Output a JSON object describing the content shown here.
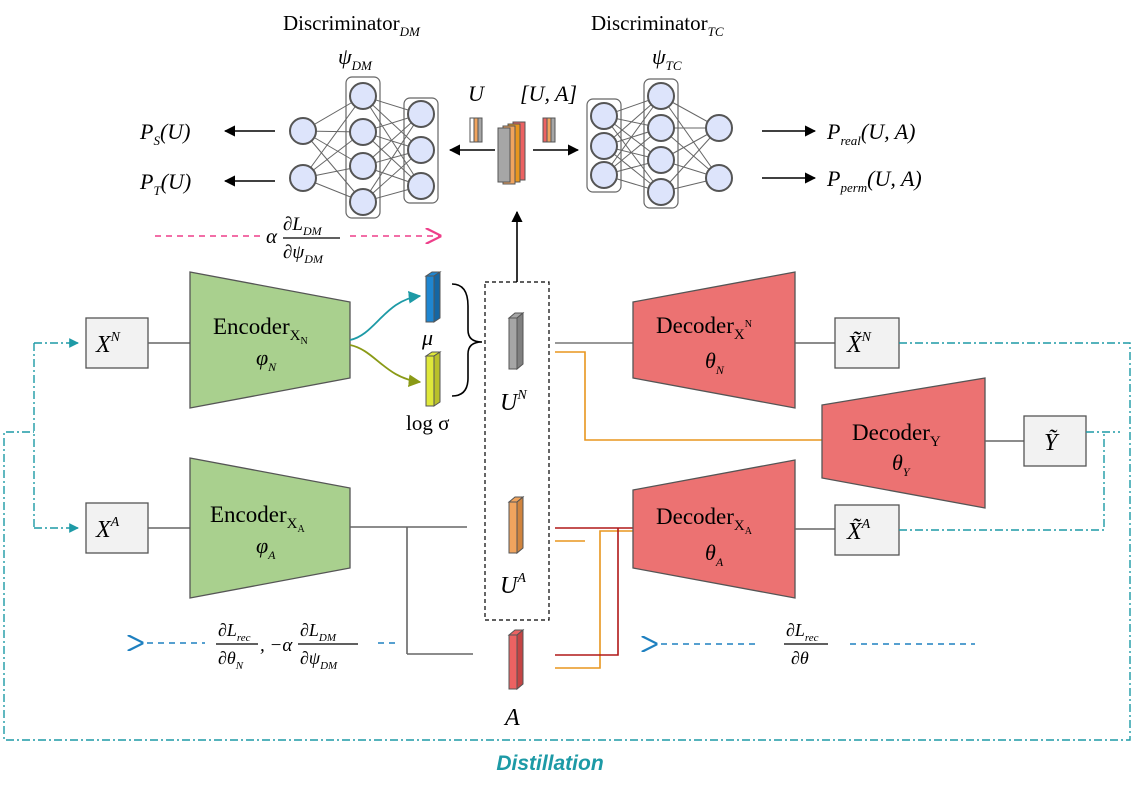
{
  "discriminator_dm": {
    "title": "Discriminator",
    "title_sub": "DM",
    "param": "ψ",
    "param_sub": "DM"
  },
  "discriminator_tc": {
    "title": "Discriminator",
    "title_sub": "TC",
    "param": "ψ",
    "param_sub": "TC"
  },
  "outputs_left": [
    {
      "var": "P",
      "sub": "S",
      "arg": "(U)"
    },
    {
      "var": "P",
      "sub": "T",
      "arg": "(U)"
    }
  ],
  "outputs_right": [
    {
      "var": "P",
      "sub": "real",
      "arg": "(U, A)"
    },
    {
      "var": "P",
      "sub": "perm",
      "arg": "(U, A)"
    }
  ],
  "labels": {
    "u_top": "U",
    "ua_top": "[U, A]",
    "mu": "μ",
    "log_sigma": "log σ",
    "un_base": "U",
    "un_sup": "N",
    "ua_base": "U",
    "ua_sup": "A",
    "a": "A",
    "distillation": "Distillation"
  },
  "gradients": {
    "dm_grad": {
      "coef": "α",
      "num": "∂L",
      "num_sub": "DM",
      "den": "∂ψ",
      "den_sub": "DM"
    },
    "enc_grad": {
      "num1": "∂L",
      "num1_sub": "rec",
      "den1": "∂θ",
      "den1_sub": "N",
      "sep": ", −α",
      "num2": "∂L",
      "num2_sub": "DM",
      "den2": "∂ψ",
      "den2_sub": "DM"
    },
    "dec_grad": {
      "num": "∂L",
      "num_sub": "rec",
      "den": "∂θ"
    }
  },
  "encoders": [
    {
      "id": "encoder-n",
      "title": "Encoder",
      "sub": "X",
      "subsub": "N",
      "param": "φ",
      "param_sub": "N"
    },
    {
      "id": "encoder-a",
      "title": "Encoder",
      "sub": "X",
      "subsub": "A",
      "param": "φ",
      "param_sub": "A"
    }
  ],
  "decoders": [
    {
      "id": "decoder-xn",
      "title": "Decoder",
      "sub": "X",
      "subsub": "N",
      "param": "θ",
      "param_sub": "N"
    },
    {
      "id": "decoder-y",
      "title": "Decoder",
      "sub": "Y",
      "subsub": "",
      "param": "θ",
      "param_sub": "Y"
    },
    {
      "id": "decoder-xa",
      "title": "Decoder",
      "sub": "X",
      "subsub": "A",
      "param": "θ",
      "param_sub": "A"
    }
  ],
  "inputs": [
    {
      "base": "X",
      "sup": "N"
    },
    {
      "base": "X",
      "sup": "A"
    }
  ],
  "reconstructions": [
    {
      "base": "X̃",
      "sup": "N"
    },
    {
      "base": "Ỹ",
      "sup": ""
    },
    {
      "base": "X̃",
      "sup": "A"
    }
  ],
  "colors": {
    "encoder_fill": "#a9d08e",
    "decoder_fill": "#ec7272",
    "neuron_fill": "#dde4fb",
    "teal": "#1d9aa6",
    "olive": "#8a9a16",
    "orange": "#e8961e",
    "darkred": "#b01818",
    "pink": "#ee3f8a",
    "blue_dash": "#1e80c0",
    "mu_fill": "#1f86d1",
    "sigma_fill": "#dfe83a",
    "un_fill": "#a6a6a6",
    "ua_fill": "#f0a45e",
    "a_fill": "#ec6262"
  }
}
